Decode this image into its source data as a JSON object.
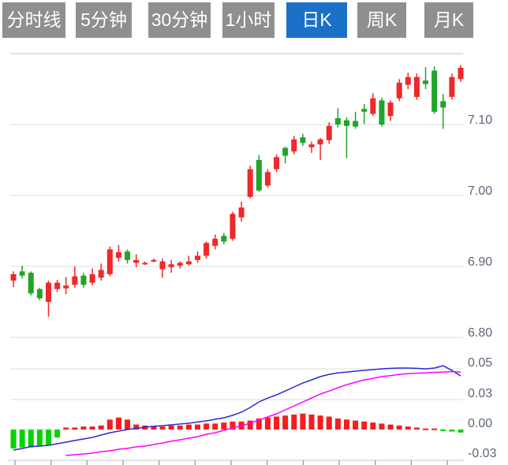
{
  "tabs": [
    {
      "id": "minute-line",
      "label": "分时线",
      "active": false
    },
    {
      "id": "5min",
      "label": "5分钟",
      "active": false
    },
    {
      "id": "30min",
      "label": "30分钟",
      "active": false
    },
    {
      "id": "1hour",
      "label": "1小时",
      "active": false
    },
    {
      "id": "daily-k",
      "label": "日K",
      "active": true
    },
    {
      "id": "weekly-k",
      "label": "周K",
      "active": false
    },
    {
      "id": "monthly-k",
      "label": "月K",
      "active": false
    }
  ],
  "colors": {
    "tab_bg": "#8f8f8f",
    "tab_active_bg": "#1b70c8",
    "tab_text": "#ffffff",
    "candle_up": "#ee282b",
    "candle_down": "#20a528",
    "hist_up": "#f51d1d",
    "hist_down": "#00d500",
    "dif_line": "#2a2ad4",
    "dea_line": "#ff00ff",
    "grid": "#e4e4e4",
    "grid_top": "#cfcfcf",
    "axis_line": "#ccd3dd",
    "tick": "#8f9cb4",
    "label_text": "#5c6677"
  },
  "chart_data": {
    "type": "candlestick+macd",
    "legend": "none",
    "grid": "horizontal-only",
    "price_axis": {
      "labels": [
        "7.10",
        "7.00",
        "6.90",
        "6.80"
      ],
      "label_values": [
        7.1,
        7.0,
        6.9,
        6.8
      ],
      "gridline_values": [
        7.2,
        7.1,
        7.0,
        6.9,
        6.8
      ],
      "ylim": [
        6.78,
        7.22
      ],
      "position": "right"
    },
    "macd_axis": {
      "labels": [
        "0.05",
        "0.03",
        "0.00",
        "-0.03"
      ],
      "label_values": [
        0.05,
        0.03,
        0.0,
        -0.03
      ],
      "gridline_values": [
        0.05,
        0.03
      ],
      "ylim": [
        -0.035,
        0.06
      ],
      "position": "right"
    },
    "x_axis": {
      "tick_labels": [],
      "tick_count": 13
    },
    "candle_format": "[open, close, high, low]",
    "candles": [
      [
        6.88,
        6.889,
        6.893,
        6.871
      ],
      [
        6.893,
        6.887,
        6.901,
        6.883
      ],
      [
        6.891,
        6.862,
        6.893,
        6.859
      ],
      [
        6.868,
        6.855,
        6.87,
        6.852
      ],
      [
        6.85,
        6.877,
        6.88,
        6.829
      ],
      [
        6.868,
        6.877,
        6.881,
        6.864
      ],
      [
        6.869,
        6.873,
        6.885,
        6.861
      ],
      [
        6.874,
        6.886,
        6.9,
        6.87
      ],
      [
        6.887,
        6.874,
        6.891,
        6.87
      ],
      [
        6.877,
        6.889,
        6.897,
        6.873
      ],
      [
        6.884,
        6.895,
        6.904,
        6.88
      ],
      [
        6.889,
        6.924,
        6.928,
        6.886
      ],
      [
        6.912,
        6.92,
        6.93,
        6.907
      ],
      [
        6.921,
        6.909,
        6.924,
        6.904
      ],
      [
        6.905,
        6.909,
        6.917,
        6.899
      ],
      [
        6.904,
        6.905,
        6.907,
        6.902
      ],
      [
        6.908,
        6.909,
        6.911,
        6.906
      ],
      [
        6.896,
        6.907,
        6.911,
        6.884
      ],
      [
        6.899,
        6.903,
        6.909,
        6.891
      ],
      [
        6.901,
        6.905,
        6.907,
        6.897
      ],
      [
        6.903,
        6.907,
        6.915,
        6.901
      ],
      [
        6.909,
        6.915,
        6.921,
        6.905
      ],
      [
        6.915,
        6.933,
        6.935,
        6.911
      ],
      [
        6.929,
        6.939,
        6.945,
        6.924
      ],
      [
        6.943,
        6.935,
        6.947,
        6.931
      ],
      [
        6.939,
        6.974,
        6.977,
        6.936
      ],
      [
        6.969,
        6.983,
        6.991,
        6.963
      ],
      [
        6.998,
        7.037,
        7.042,
        6.996
      ],
      [
        7.05,
        7.007,
        7.057,
        7.005
      ],
      [
        7.014,
        7.033,
        7.037,
        7.011
      ],
      [
        7.037,
        7.054,
        7.058,
        7.033
      ],
      [
        7.067,
        7.056,
        7.069,
        7.045
      ],
      [
        7.062,
        7.079,
        7.084,
        7.058
      ],
      [
        7.082,
        7.074,
        7.087,
        7.07
      ],
      [
        7.068,
        7.072,
        7.076,
        7.06
      ],
      [
        7.072,
        7.079,
        7.081,
        7.05
      ],
      [
        7.078,
        7.098,
        7.103,
        7.073
      ],
      [
        7.109,
        7.1,
        7.123,
        7.096
      ],
      [
        7.106,
        7.098,
        7.11,
        7.053
      ],
      [
        7.105,
        7.097,
        7.118,
        7.094
      ],
      [
        7.122,
        7.118,
        7.129,
        7.101
      ],
      [
        7.115,
        7.137,
        7.144,
        7.112
      ],
      [
        7.134,
        7.1,
        7.138,
        7.097
      ],
      [
        7.112,
        7.131,
        7.134,
        7.105
      ],
      [
        7.137,
        7.159,
        7.164,
        7.133
      ],
      [
        7.156,
        7.167,
        7.173,
        7.15
      ],
      [
        7.139,
        7.167,
        7.172,
        7.135
      ],
      [
        7.162,
        7.157,
        7.181,
        7.15
      ],
      [
        7.176,
        7.118,
        7.182,
        7.115
      ],
      [
        7.133,
        7.124,
        7.143,
        7.094
      ],
      [
        7.139,
        7.167,
        7.172,
        7.135
      ],
      [
        7.164,
        7.18,
        7.184,
        7.16
      ]
    ],
    "macd": {
      "hist": [
        -0.019,
        -0.018,
        -0.018,
        -0.017,
        -0.016,
        -0.008,
        0.002,
        0.002,
        0.003,
        0.003,
        0.004,
        0.01,
        0.012,
        0.01,
        0.005,
        0.004,
        0.003,
        0.003,
        0.004,
        0.004,
        0.005,
        0.005,
        0.006,
        0.006,
        0.007,
        0.008,
        0.008,
        0.009,
        0.011,
        0.012,
        0.013,
        0.014,
        0.015,
        0.016,
        0.015,
        0.014,
        0.013,
        0.011,
        0.01,
        0.009,
        0.008,
        0.007,
        0.006,
        0.005,
        0.004,
        0.003,
        0.002,
        0.001,
        0.001,
        -0.001,
        -0.002,
        -0.003
      ],
      "dif": [
        -0.0205,
        -0.019,
        -0.017,
        -0.0166,
        -0.0158,
        -0.0142,
        -0.0126,
        -0.011,
        -0.0095,
        -0.0079,
        -0.0055,
        -0.0032,
        -0.0016,
        0.0,
        0.0012,
        0.0024,
        0.0032,
        0.0039,
        0.0047,
        0.0055,
        0.0063,
        0.0075,
        0.0087,
        0.0103,
        0.0118,
        0.0142,
        0.0174,
        0.0221,
        0.0276,
        0.031,
        0.0331,
        0.0356,
        0.0382,
        0.0408,
        0.0428,
        0.0449,
        0.0464,
        0.0474,
        0.0479,
        0.0485,
        0.049,
        0.0495,
        0.05,
        0.0503,
        0.0505,
        0.0505,
        0.0503,
        0.05,
        0.0505,
        0.052,
        0.049,
        0.0454
      ],
      "dea": [
        null,
        null,
        null,
        null,
        null,
        null,
        -0.026,
        -0.0253,
        -0.0245,
        -0.0237,
        -0.0221,
        -0.0213,
        -0.0197,
        -0.0189,
        -0.0174,
        -0.0166,
        -0.015,
        -0.0134,
        -0.0118,
        -0.0103,
        -0.0087,
        -0.0071,
        -0.0047,
        -0.0032,
        -0.0008,
        0.0016,
        0.0039,
        0.0063,
        0.0095,
        0.0126,
        0.0158,
        0.0197,
        0.0237,
        0.0276,
        0.031,
        0.0336,
        0.0356,
        0.0377,
        0.0397,
        0.0413,
        0.0428,
        0.0438,
        0.0449,
        0.0456,
        0.0464,
        0.0469,
        0.0472,
        0.0474,
        0.0477,
        0.0479,
        0.0482,
        0.0479
      ]
    }
  }
}
